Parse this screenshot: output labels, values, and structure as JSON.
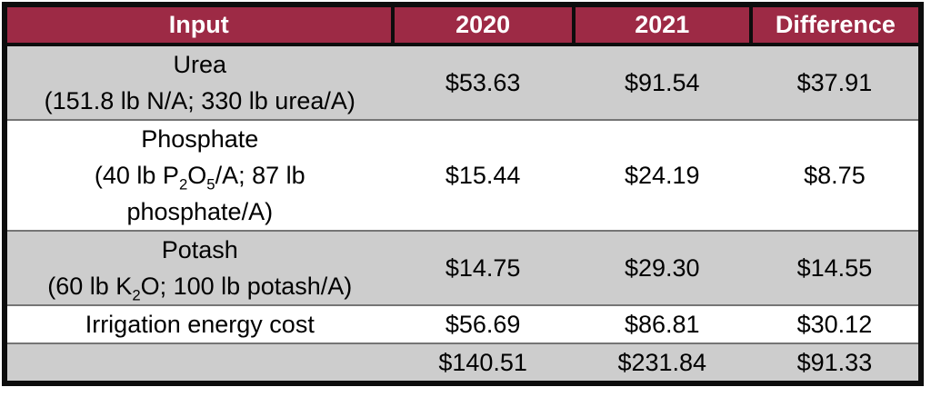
{
  "page": {
    "background": "#FFFFFF"
  },
  "table": {
    "columns": [
      "Input",
      "2020",
      "2021",
      "Difference"
    ],
    "rows": [
      {
        "shade": "gray",
        "input_lines": [
          "Urea",
          "(151.8 lb N/A; 330 lb urea/A)"
        ],
        "values": [
          "$53.63",
          "$91.54",
          "$37.91"
        ]
      },
      {
        "shade": "white",
        "input_lines": [
          "Phosphate",
          "(40 lb P~2~O~5~/A; 87 lb",
          "phosphate/A)"
        ],
        "values": [
          "$15.44",
          "$24.19",
          "$8.75"
        ]
      },
      {
        "shade": "gray",
        "input_lines": [
          "Potash",
          "(60 lb K~2~O; 100 lb potash/A)"
        ],
        "values": [
          "$14.75",
          "$29.30",
          "$14.55"
        ]
      },
      {
        "shade": "white",
        "input_lines": [
          "Irrigation energy cost"
        ],
        "values": [
          "$56.69",
          "$86.81",
          "$30.12"
        ]
      },
      {
        "shade": "gray",
        "is_total": true,
        "input_lines": [
          ""
        ],
        "values": [
          "$140.51",
          "$231.84",
          "$91.33"
        ]
      }
    ],
    "colors": {
      "header_bg": "#9D2A45",
      "header_text": "#FFFFFF",
      "row_gray": "#CDCDCD",
      "row_white": "#FFFFFF",
      "outer_border": "#0D0D0D",
      "row_separator": "#757575",
      "body_text": "#000000"
    }
  }
}
